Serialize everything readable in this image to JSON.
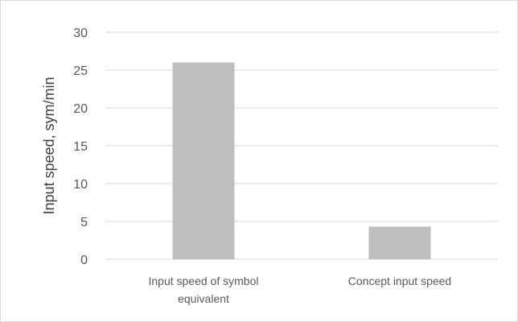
{
  "chart_data": {
    "type": "bar",
    "title": "",
    "xlabel": "",
    "ylabel": "Input speed, sym/min",
    "ylim": [
      0,
      30
    ],
    "yticks": [
      0,
      5,
      10,
      15,
      20,
      25,
      30
    ],
    "grid": true,
    "legend": "none",
    "categories": [
      [
        "Input speed of symbol",
        "equivalent"
      ],
      [
        "Concept input speed"
      ]
    ],
    "values": [
      26,
      4.3
    ],
    "colors": {
      "bar": "#bfbfbf",
      "grid": "#d9d9d9",
      "text": "#595959"
    }
  }
}
